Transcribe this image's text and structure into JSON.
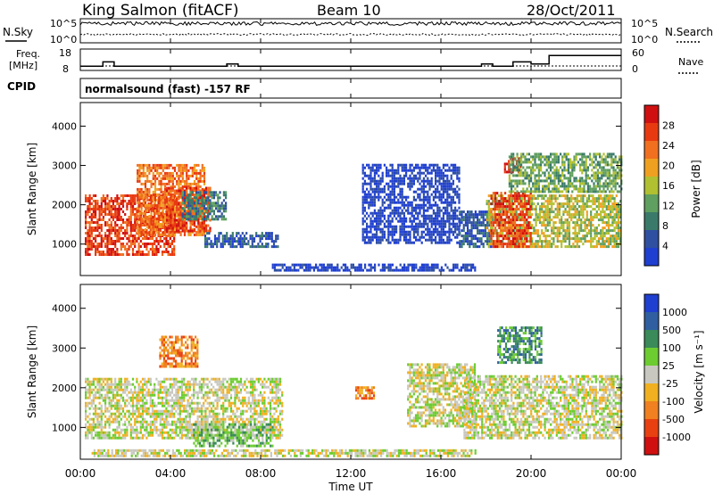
{
  "header": {
    "station": "King Salmon (fitACF)",
    "beam": "Beam 10",
    "date": "28/Oct/2011"
  },
  "noise_panel": {
    "left_label": "N.Sky",
    "left_ticks": [
      "10^5",
      "10^0"
    ],
    "right_label": "N.Search",
    "right_ticks": [
      "10^5",
      "10^0"
    ]
  },
  "freq_panel": {
    "left_label_1": "Freq.",
    "left_label_2": "[MHz]",
    "left_ticks": [
      "18",
      "8"
    ],
    "right_label": "Nave",
    "right_ticks": [
      "60",
      "0"
    ]
  },
  "cpid": {
    "label": "CPID",
    "value": "normalsound (fast) -157 RF"
  },
  "x_axis": {
    "label": "Time UT",
    "ticks": [
      "00:00",
      "04:00",
      "08:00",
      "12:00",
      "16:00",
      "20:00",
      "00:00"
    ]
  },
  "colors": {
    "power_scale": [
      "#1f3fd0",
      "#2f4fa0",
      "#3a7a6a",
      "#5f9f5f",
      "#b0c030",
      "#f0a020",
      "#f07020",
      "#e83a10",
      "#d01010"
    ],
    "velocity_scale": [
      "#1f3fd0",
      "#2f5fa0",
      "#3a8a5a",
      "#6ccc30",
      "#c8c8c0",
      "#f0b020",
      "#f08020",
      "#e84010",
      "#d01010"
    ]
  },
  "chart_data": [
    {
      "type": "heatmap",
      "name": "power",
      "ylabel": "Slant Range [km]",
      "yticks": [
        1000,
        2000,
        3000,
        4000
      ],
      "ylim": [
        200,
        4600
      ],
      "xlim_hours": [
        0,
        24
      ],
      "colorbar_label": "Power [dB]",
      "colorbar_ticks": [
        "28",
        "24",
        "20",
        "16",
        "12",
        "8",
        "4"
      ],
      "regions": [
        {
          "t0": 0.2,
          "t1": 4.2,
          "r0": 700,
          "r1": 2200,
          "level": 7
        },
        {
          "t0": 2.5,
          "t1": 5.5,
          "r0": 1200,
          "r1": 3000,
          "level": 6
        },
        {
          "t0": 3.8,
          "t1": 5.8,
          "r0": 1300,
          "r1": 2400,
          "level": 7
        },
        {
          "t0": 5.5,
          "t1": 8.8,
          "r0": 900,
          "r1": 1300,
          "level": 1
        },
        {
          "t0": 4.5,
          "t1": 6.5,
          "r0": 1600,
          "r1": 2300,
          "level": 2
        },
        {
          "t0": 8.5,
          "t1": 17.5,
          "r0": 300,
          "r1": 500,
          "level": 0
        },
        {
          "t0": 12.5,
          "t1": 16.8,
          "r0": 1000,
          "r1": 3000,
          "level": 0
        },
        {
          "t0": 16.8,
          "t1": 18.2,
          "r0": 900,
          "r1": 1800,
          "level": 1
        },
        {
          "t0": 18.0,
          "t1": 24.0,
          "r0": 900,
          "r1": 2200,
          "level": 4
        },
        {
          "t0": 18.2,
          "t1": 20.0,
          "r0": 900,
          "r1": 2300,
          "level": 7
        },
        {
          "t0": 18.8,
          "t1": 19.5,
          "r0": 2800,
          "r1": 3200,
          "level": 8
        },
        {
          "t0": 19.0,
          "t1": 24.0,
          "r0": 2300,
          "r1": 3300,
          "level": 3
        }
      ]
    },
    {
      "type": "heatmap",
      "name": "velocity",
      "ylabel": "Slant Range [km]",
      "yticks": [
        1000,
        2000,
        3000,
        4000
      ],
      "ylim": [
        200,
        4600
      ],
      "xlim_hours": [
        0,
        24
      ],
      "colorbar_label": "Velocity [m s⁻¹]",
      "colorbar_ticks": [
        "1000",
        "500",
        "100",
        "25",
        "-25",
        "-100",
        "-500",
        "-1000"
      ],
      "regions": [
        {
          "t0": 0.2,
          "t1": 9.0,
          "r0": 700,
          "r1": 2200,
          "level": 4
        },
        {
          "t0": 5.0,
          "t1": 8.5,
          "r0": 500,
          "r1": 1100,
          "level": 3
        },
        {
          "t0": 3.5,
          "t1": 5.2,
          "r0": 2500,
          "r1": 3300,
          "level": 6
        },
        {
          "t0": 0.5,
          "t1": 17.5,
          "r0": 250,
          "r1": 450,
          "level": 4
        },
        {
          "t0": 14.5,
          "t1": 17.5,
          "r0": 1000,
          "r1": 2600,
          "level": 4
        },
        {
          "t0": 17.0,
          "t1": 24.0,
          "r0": 700,
          "r1": 2300,
          "level": 4
        },
        {
          "t0": 18.5,
          "t1": 20.5,
          "r0": 2600,
          "r1": 3500,
          "level": 2
        },
        {
          "t0": 12.2,
          "t1": 13.0,
          "r0": 1700,
          "r1": 2000,
          "level": 6
        }
      ]
    }
  ],
  "noise_series": {
    "sky_level": 0.8,
    "search_level": 0.35
  },
  "freq_series": {
    "segments": [
      [
        0,
        1.0,
        10
      ],
      [
        1.0,
        1.5,
        12
      ],
      [
        1.5,
        2.0,
        10
      ],
      [
        2.0,
        6.5,
        10
      ],
      [
        6.5,
        7.0,
        11
      ],
      [
        7.0,
        17.8,
        10
      ],
      [
        17.8,
        18.3,
        11
      ],
      [
        18.3,
        19.2,
        10
      ],
      [
        19.2,
        20.0,
        12
      ],
      [
        20.0,
        20.8,
        11
      ],
      [
        20.8,
        24.0,
        15
      ]
    ]
  }
}
